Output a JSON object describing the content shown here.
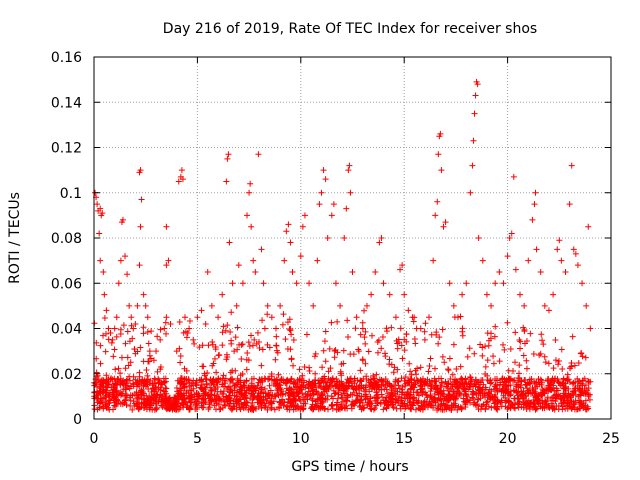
{
  "chart_data": {
    "type": "scatter",
    "title": "Day 216 of 2019, Rate Of TEC Index for receiver shos",
    "xlabel": "GPS time / hours",
    "ylabel": "ROTI / TECUs",
    "xlim": [
      0,
      25
    ],
    "ylim": [
      0,
      0.16
    ],
    "xticks": [
      0,
      5,
      10,
      15,
      20,
      25
    ],
    "xtick_labels": [
      "0",
      "5",
      "10",
      "15",
      "20",
      "25"
    ],
    "yticks": [
      0,
      0.02,
      0.04,
      0.06,
      0.08,
      0.1,
      0.12,
      0.14,
      0.16
    ],
    "ytick_labels": [
      "0",
      "0.02",
      "0.04",
      "0.06",
      "0.08",
      "0.1",
      "0.12",
      "0.14",
      "0.16"
    ],
    "grid": true,
    "marker": "+",
    "color": "#ff0000",
    "series": [
      {
        "name": "ROTI",
        "points": [
          [
            0.05,
            0.1
          ],
          [
            0.1,
            0.098
          ],
          [
            0.15,
            0.095
          ],
          [
            0.2,
            0.092
          ],
          [
            0.3,
            0.093
          ],
          [
            0.35,
            0.09
          ],
          [
            0.4,
            0.091
          ],
          [
            0.25,
            0.082
          ],
          [
            0.3,
            0.07
          ],
          [
            0.45,
            0.065
          ],
          [
            0.5,
            0.055
          ],
          [
            0.6,
            0.048
          ],
          [
            0.7,
            0.04
          ],
          [
            0.8,
            0.038
          ],
          [
            0.9,
            0.035
          ],
          [
            1.0,
            0.04
          ],
          [
            1.1,
            0.045
          ],
          [
            1.2,
            0.06
          ],
          [
            1.3,
            0.07
          ],
          [
            1.35,
            0.087
          ],
          [
            1.4,
            0.088
          ],
          [
            1.5,
            0.072
          ],
          [
            1.6,
            0.064
          ],
          [
            1.7,
            0.05
          ],
          [
            1.8,
            0.045
          ],
          [
            1.9,
            0.04
          ],
          [
            2.0,
            0.042
          ],
          [
            2.1,
            0.05
          ],
          [
            2.2,
            0.068
          ],
          [
            2.25,
            0.085
          ],
          [
            2.3,
            0.097
          ],
          [
            2.2,
            0.109
          ],
          [
            2.25,
            0.11
          ],
          [
            2.4,
            0.055
          ],
          [
            2.5,
            0.05
          ],
          [
            2.6,
            0.045
          ],
          [
            2.7,
            0.03
          ],
          [
            3.0,
            0.03
          ],
          [
            3.2,
            0.035
          ],
          [
            3.4,
            0.04
          ],
          [
            3.5,
            0.045
          ],
          [
            3.5,
            0.068
          ],
          [
            3.6,
            0.07
          ],
          [
            3.5,
            0.085
          ],
          [
            3.7,
            0.042
          ],
          [
            4.0,
            0.03
          ],
          [
            4.1,
            0.105
          ],
          [
            4.2,
            0.107
          ],
          [
            4.25,
            0.11
          ],
          [
            4.3,
            0.106
          ],
          [
            4.4,
            0.045
          ],
          [
            4.6,
            0.04
          ],
          [
            4.8,
            0.035
          ],
          [
            5.0,
            0.045
          ],
          [
            5.2,
            0.048
          ],
          [
            5.4,
            0.042
          ],
          [
            5.5,
            0.065
          ],
          [
            5.7,
            0.05
          ],
          [
            6.0,
            0.045
          ],
          [
            6.2,
            0.055
          ],
          [
            6.4,
            0.105
          ],
          [
            6.45,
            0.115
          ],
          [
            6.5,
            0.117
          ],
          [
            6.55,
            0.078
          ],
          [
            6.7,
            0.06
          ],
          [
            6.9,
            0.05
          ],
          [
            7.0,
            0.068
          ],
          [
            7.2,
            0.06
          ],
          [
            7.4,
            0.09
          ],
          [
            7.5,
            0.1
          ],
          [
            7.55,
            0.104
          ],
          [
            7.6,
            0.085
          ],
          [
            7.7,
            0.07
          ],
          [
            7.8,
            0.065
          ],
          [
            7.95,
            0.117
          ],
          [
            8.1,
            0.075
          ],
          [
            8.2,
            0.06
          ],
          [
            8.4,
            0.05
          ],
          [
            8.6,
            0.045
          ],
          [
            8.8,
            0.04
          ],
          [
            9.0,
            0.05
          ],
          [
            9.2,
            0.07
          ],
          [
            9.3,
            0.083
          ],
          [
            9.4,
            0.086
          ],
          [
            9.5,
            0.078
          ],
          [
            9.6,
            0.065
          ],
          [
            9.8,
            0.06
          ],
          [
            10.0,
            0.072
          ],
          [
            10.1,
            0.085
          ],
          [
            10.2,
            0.09
          ],
          [
            10.4,
            0.06
          ],
          [
            10.6,
            0.05
          ],
          [
            10.8,
            0.07
          ],
          [
            10.9,
            0.095
          ],
          [
            11.0,
            0.1
          ],
          [
            11.1,
            0.11
          ],
          [
            11.2,
            0.106
          ],
          [
            11.3,
            0.08
          ],
          [
            11.5,
            0.09
          ],
          [
            11.6,
            0.095
          ],
          [
            11.7,
            0.06
          ],
          [
            11.9,
            0.05
          ],
          [
            12.1,
            0.08
          ],
          [
            12.2,
            0.093
          ],
          [
            12.3,
            0.11
          ],
          [
            12.35,
            0.112
          ],
          [
            12.4,
            0.1
          ],
          [
            12.5,
            0.065
          ],
          [
            12.7,
            0.045
          ],
          [
            13.0,
            0.04
          ],
          [
            13.2,
            0.05
          ],
          [
            13.4,
            0.055
          ],
          [
            13.6,
            0.065
          ],
          [
            13.8,
            0.078
          ],
          [
            13.9,
            0.08
          ],
          [
            14.0,
            0.06
          ],
          [
            14.3,
            0.055
          ],
          [
            14.6,
            0.045
          ],
          [
            14.8,
            0.066
          ],
          [
            14.9,
            0.068
          ],
          [
            15.0,
            0.055
          ],
          [
            15.2,
            0.048
          ],
          [
            15.4,
            0.045
          ],
          [
            15.6,
            0.04
          ],
          [
            15.8,
            0.04
          ],
          [
            16.0,
            0.035
          ],
          [
            16.2,
            0.045
          ],
          [
            16.4,
            0.07
          ],
          [
            16.5,
            0.09
          ],
          [
            16.6,
            0.096
          ],
          [
            16.65,
            0.117
          ],
          [
            16.7,
            0.125
          ],
          [
            16.75,
            0.126
          ],
          [
            16.8,
            0.11
          ],
          [
            16.9,
            0.085
          ],
          [
            17.0,
            0.087
          ],
          [
            17.2,
            0.06
          ],
          [
            17.4,
            0.05
          ],
          [
            17.6,
            0.045
          ],
          [
            17.8,
            0.055
          ],
          [
            18.0,
            0.06
          ],
          [
            18.2,
            0.1
          ],
          [
            18.3,
            0.112
          ],
          [
            18.35,
            0.123
          ],
          [
            18.4,
            0.135
          ],
          [
            18.45,
            0.143
          ],
          [
            18.5,
            0.149
          ],
          [
            18.55,
            0.148
          ],
          [
            18.6,
            0.08
          ],
          [
            18.8,
            0.07
          ],
          [
            19.0,
            0.055
          ],
          [
            19.2,
            0.05
          ],
          [
            19.4,
            0.06
          ],
          [
            19.6,
            0.065
          ],
          [
            19.8,
            0.06
          ],
          [
            20.0,
            0.072
          ],
          [
            20.1,
            0.08
          ],
          [
            20.2,
            0.082
          ],
          [
            20.3,
            0.107
          ],
          [
            20.4,
            0.066
          ],
          [
            20.6,
            0.055
          ],
          [
            20.8,
            0.05
          ],
          [
            21.0,
            0.07
          ],
          [
            21.2,
            0.088
          ],
          [
            21.3,
            0.095
          ],
          [
            21.35,
            0.1
          ],
          [
            21.4,
            0.075
          ],
          [
            21.6,
            0.065
          ],
          [
            21.8,
            0.05
          ],
          [
            22.0,
            0.048
          ],
          [
            22.2,
            0.055
          ],
          [
            22.4,
            0.075
          ],
          [
            22.5,
            0.079
          ],
          [
            22.6,
            0.07
          ],
          [
            22.8,
            0.065
          ],
          [
            23.0,
            0.095
          ],
          [
            23.1,
            0.112
          ],
          [
            23.2,
            0.075
          ],
          [
            23.3,
            0.073
          ],
          [
            23.4,
            0.068
          ],
          [
            23.6,
            0.06
          ],
          [
            23.8,
            0.05
          ],
          [
            23.9,
            0.085
          ],
          [
            24.0,
            0.04
          ]
        ]
      }
    ]
  }
}
